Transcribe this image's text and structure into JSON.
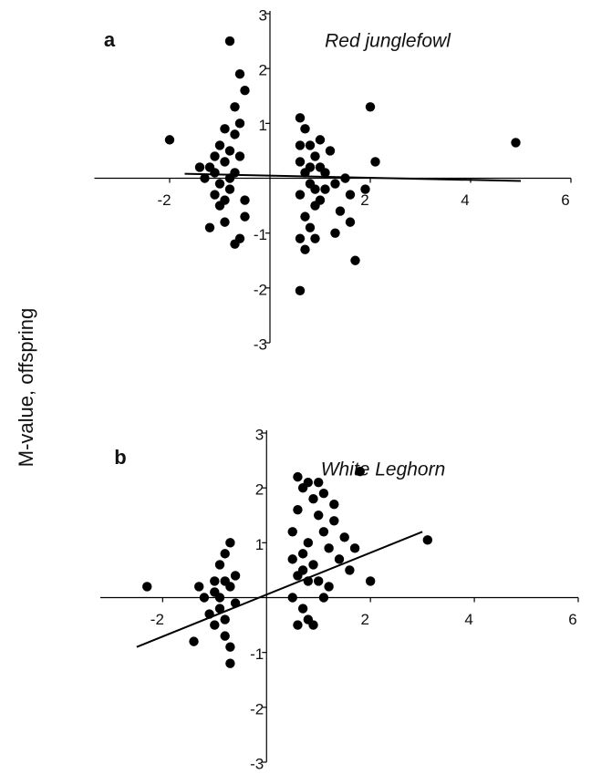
{
  "ylabel": "M-value, offspring",
  "chart_data": [
    {
      "type": "scatter",
      "panel": "a",
      "title": "Red junglefowl",
      "color": "#000000",
      "xlim": [
        -3.5,
        6
      ],
      "ylim": [
        -3,
        3
      ],
      "xticks": [
        -2,
        2,
        4,
        6
      ],
      "yticks": [
        -3,
        -2,
        -1,
        1,
        2,
        3
      ],
      "x": [
        -1.0,
        -0.9,
        -1.1,
        -0.8,
        -1.0,
        -0.7,
        -0.6,
        -0.8,
        -1.2,
        -0.9,
        -0.6,
        -0.7,
        -1.1,
        -0.7,
        -0.5,
        -1.3,
        -0.8,
        -1.0,
        -0.6,
        -0.9,
        -0.7,
        -0.8,
        -0.6,
        -0.5,
        -2.0,
        -1.2,
        -1.4,
        -0.5,
        -0.9,
        -1.1,
        0.6,
        0.7,
        0.8,
        0.9,
        0.6,
        0.7,
        0.8,
        0.6,
        0.9,
        0.7,
        0.8,
        0.6,
        0.7,
        1.0,
        1.1,
        1.2,
        1.3,
        1.5,
        1.6,
        1.4,
        1.9,
        1.6,
        1.3,
        1.0,
        0.9,
        2.0,
        2.1,
        4.9,
        1.7,
        0.6,
        1.1,
        0.8,
        0.9,
        1.0,
        0.6
      ],
      "y": [
        0.6,
        0.3,
        0.1,
        -0.2,
        -0.5,
        0.8,
        1.0,
        0.5,
        0.2,
        -0.8,
        -1.1,
        -1.2,
        -0.3,
        0.1,
        -0.4,
        0.0,
        0.0,
        -0.1,
        0.4,
        0.9,
        1.3,
        2.5,
        1.9,
        1.6,
        0.7,
        -0.9,
        0.2,
        -0.7,
        -0.4,
        0.4,
        1.1,
        0.9,
        0.6,
        0.4,
        0.3,
        0.1,
        -0.1,
        -0.3,
        -0.5,
        -0.7,
        -0.9,
        -1.1,
        -1.3,
        0.2,
        -0.2,
        0.5,
        -0.1,
        0.0,
        -0.3,
        -0.6,
        -0.2,
        -0.8,
        -1.0,
        0.7,
        -1.1,
        1.3,
        0.3,
        0.65,
        -1.5,
        -2.05,
        0.1,
        0.2,
        -0.2,
        -0.4,
        0.6
      ],
      "trend": {
        "x": [
          -1.7,
          5
        ],
        "y": [
          0.08,
          -0.05
        ]
      }
    },
    {
      "type": "scatter",
      "panel": "b",
      "title": "White Leghorn",
      "color": "#000000",
      "xlim": [
        -3.2,
        6
      ],
      "ylim": [
        -3,
        3
      ],
      "xticks": [
        -2,
        2,
        4,
        6
      ],
      "yticks": [
        -3,
        -2,
        -1,
        1,
        2,
        3
      ],
      "x": [
        -2.3,
        -1.3,
        -1.4,
        -1.0,
        -0.9,
        -0.8,
        -1.1,
        -0.7,
        -0.8,
        -0.9,
        -1.0,
        -0.8,
        -0.7,
        -0.6,
        -0.6,
        -0.7,
        -1.2,
        -0.9,
        -1.0,
        -0.8,
        -0.7,
        0.5,
        0.6,
        0.7,
        0.5,
        0.6,
        0.7,
        0.8,
        0.9,
        1.0,
        1.1,
        0.8,
        0.9,
        1.0,
        0.7,
        0.6,
        0.8,
        1.2,
        1.3,
        1.4,
        1.5,
        1.6,
        1.2,
        1.0,
        1.1,
        0.6,
        1.3,
        0.9,
        0.5,
        1.8,
        3.1,
        2.0,
        1.7,
        1.1,
        0.7,
        0.8
      ],
      "y": [
        0.2,
        0.2,
        -0.8,
        0.1,
        -0.2,
        0.3,
        -0.3,
        1.0,
        0.8,
        0.6,
        -0.5,
        -0.7,
        -0.9,
        -0.1,
        0.4,
        -1.2,
        0.0,
        0.0,
        0.3,
        -0.4,
        0.2,
        0.0,
        0.4,
        0.8,
        1.2,
        1.6,
        2.0,
        2.1,
        1.8,
        1.5,
        1.2,
        1.0,
        0.6,
        0.3,
        -0.2,
        -0.5,
        -0.4,
        0.9,
        1.4,
        0.7,
        1.1,
        0.5,
        0.2,
        2.1,
        1.9,
        2.2,
        1.7,
        -0.5,
        0.7,
        2.3,
        1.05,
        0.3,
        0.9,
        0.0,
        0.5,
        0.3
      ],
      "trend": {
        "x": [
          -2.5,
          3
        ],
        "y": [
          -0.9,
          1.2
        ]
      }
    }
  ]
}
